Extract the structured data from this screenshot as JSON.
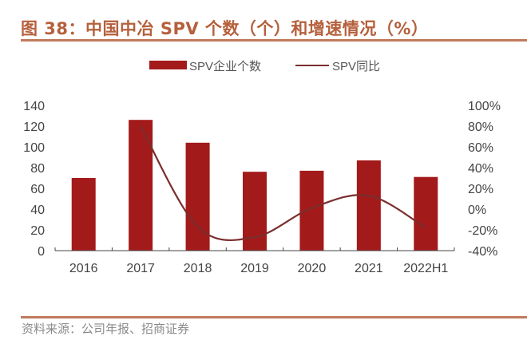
{
  "title": "图 38：中国中冶 SPV 个数（个）和增速情况（%）",
  "source": "资料来源：公司年报、招商证券",
  "chart_data": {
    "type": "bar+line",
    "categories": [
      "2016",
      "2017",
      "2018",
      "2019",
      "2020",
      "2021",
      "2022H1"
    ],
    "series": [
      {
        "name": "SPV企业个数",
        "type": "bar",
        "axis": "left",
        "color": "#a31a1a",
        "values": [
          70,
          126,
          104,
          76,
          77,
          87,
          71
        ]
      },
      {
        "name": "SPV同比",
        "type": "line",
        "axis": "right",
        "color": "#7b2e2e",
        "smooth": true,
        "values": [
          null,
          80,
          -17,
          -27,
          1,
          13,
          -18
        ]
      }
    ],
    "y_left": {
      "range": [
        0,
        140
      ],
      "ticks": [
        "0",
        "20",
        "40",
        "60",
        "80",
        "100",
        "120",
        "140"
      ]
    },
    "y_right": {
      "range": [
        -40,
        100
      ],
      "ticks": [
        "-40%",
        "-20%",
        "0%",
        "20%",
        "40%",
        "60%",
        "80%",
        "100%"
      ]
    },
    "grid": false,
    "legend": "top-center"
  }
}
